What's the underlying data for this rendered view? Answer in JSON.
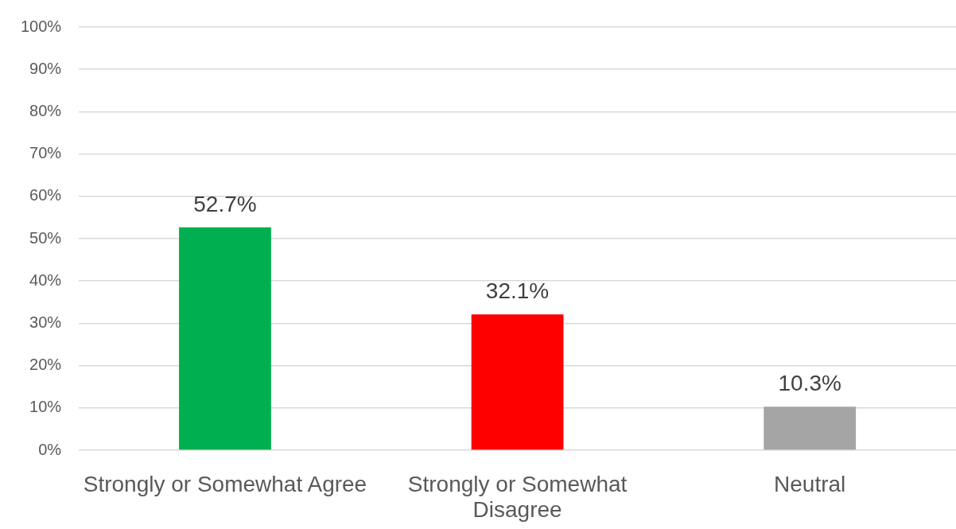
{
  "chart_data": {
    "type": "bar",
    "categories": [
      "Strongly or Somewhat Agree",
      "Strongly or Somewhat Disagree",
      "Neutral"
    ],
    "values": [
      52.7,
      32.1,
      10.3
    ],
    "colors": [
      "#00b050",
      "#ff0000",
      "#a5a5a5"
    ],
    "value_labels": [
      "52.7%",
      "32.1%",
      "10.3%"
    ],
    "ylim": [
      0,
      100
    ],
    "yticks": [
      {
        "value": 0,
        "label": "0%"
      },
      {
        "value": 10,
        "label": "10%"
      },
      {
        "value": 20,
        "label": "20%"
      },
      {
        "value": 30,
        "label": "30%"
      },
      {
        "value": 40,
        "label": "40%"
      },
      {
        "value": 50,
        "label": "50%"
      },
      {
        "value": 60,
        "label": "60%"
      },
      {
        "value": 70,
        "label": "70%"
      },
      {
        "value": 80,
        "label": "80%"
      },
      {
        "value": 90,
        "label": "90%"
      },
      {
        "value": 100,
        "label": "100%"
      }
    ],
    "grid": "y"
  }
}
